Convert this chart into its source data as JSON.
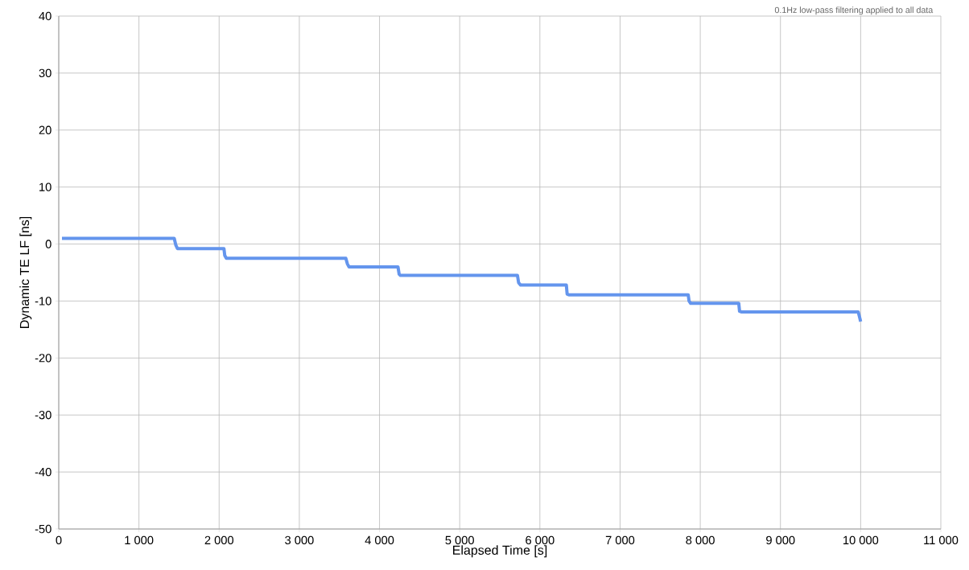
{
  "chart_data": {
    "type": "line",
    "xlabel": "Elapsed Time [s]",
    "ylabel": "Dynamic TE LF [ns]",
    "annotations": [
      "0.1Hz low-pass filtering applied to all data"
    ],
    "x": [
      40,
      700,
      1440,
      1460,
      1480,
      2060,
      2070,
      2090,
      3580,
      3600,
      3620,
      4230,
      4245,
      4260,
      5720,
      5735,
      5760,
      6330,
      6340,
      6360,
      7850,
      7860,
      7880,
      8480,
      8490,
      8510,
      9970,
      9990,
      10000
    ],
    "series": [
      {
        "color": "#6495ed",
        "values": [
          1.0,
          1.0,
          1.0,
          -0.2,
          -0.8,
          -0.8,
          -2.0,
          -2.5,
          -2.5,
          -3.5,
          -4.0,
          -4.0,
          -5.3,
          -5.5,
          -5.5,
          -6.8,
          -7.2,
          -7.2,
          -8.8,
          -8.9,
          -8.9,
          -10.0,
          -10.4,
          -10.4,
          -11.8,
          -11.9,
          -11.9,
          -13.0,
          -13.6
        ]
      }
    ],
    "xlim": [
      0,
      11000
    ],
    "ylim": [
      -50,
      40
    ],
    "xticks": [
      0,
      {
        "value": 1000,
        "label": "1 000"
      },
      {
        "value": 2000,
        "label": "2 000"
      },
      {
        "value": 3000,
        "label": "3 000"
      },
      {
        "value": 4000,
        "label": "4 000"
      },
      {
        "value": 5000,
        "label": "5 000"
      },
      {
        "value": 6000,
        "label": "6 000"
      },
      {
        "value": 7000,
        "label": "7 000"
      },
      {
        "value": 8000,
        "label": "8 000"
      },
      {
        "value": 9000,
        "label": "9 000"
      },
      {
        "value": 10000,
        "label": "10 000"
      },
      {
        "value": 11000,
        "label": "11 000"
      }
    ],
    "yticks": [
      -50,
      -40,
      -30,
      -20,
      -10,
      0,
      10,
      20,
      30,
      40
    ],
    "grid": true,
    "marker": "none",
    "line_style": "solid"
  }
}
